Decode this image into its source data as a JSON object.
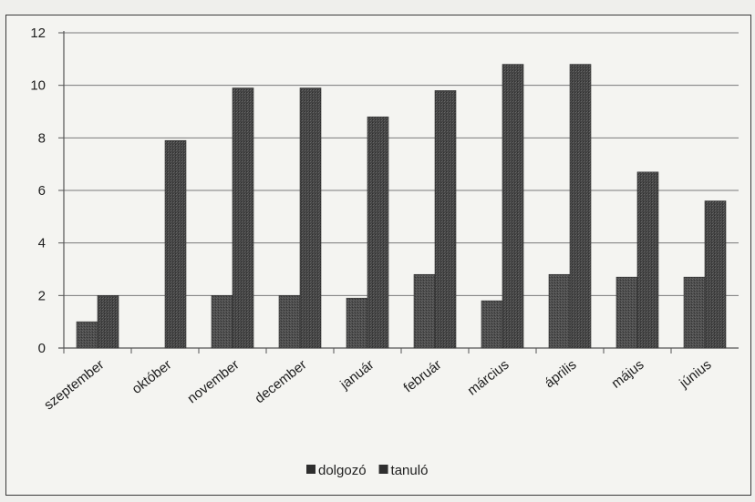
{
  "chart_data": {
    "type": "bar",
    "categories": [
      "szeptember",
      "október",
      "november",
      "december",
      "január",
      "február",
      "március",
      "április",
      "május",
      "június"
    ],
    "series": [
      {
        "name": "dolgozó",
        "values": [
          1,
          0,
          2,
          2,
          1.9,
          2.8,
          1.8,
          2.8,
          2.7,
          2.7
        ],
        "color": "#4a4a4a"
      },
      {
        "name": "tanuló",
        "values": [
          2,
          7.9,
          9.9,
          9.9,
          8.8,
          9.8,
          10.8,
          10.8,
          6.7,
          5.6
        ],
        "color": "#505050"
      }
    ],
    "yticks": [
      "0",
      "2",
      "4",
      "6",
      "8",
      "10",
      "12"
    ],
    "ylim": [
      0,
      12
    ],
    "grid": true,
    "legend_position": "bottom"
  }
}
